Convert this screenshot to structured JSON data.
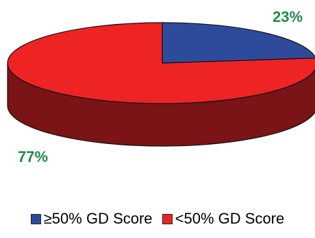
{
  "chart_data": {
    "type": "pie",
    "title": "",
    "slices": [
      {
        "label": "≥50% GD Score",
        "value": 23,
        "value_label": "23%",
        "color": "#2E4B9B"
      },
      {
        "label": "<50% GD Score",
        "value": 77,
        "value_label": "77%",
        "color": "#EE2324"
      }
    ],
    "side_color": "#7A1416",
    "label_color": "#1E8A4C",
    "style": "3d",
    "legend_position": "bottom"
  }
}
